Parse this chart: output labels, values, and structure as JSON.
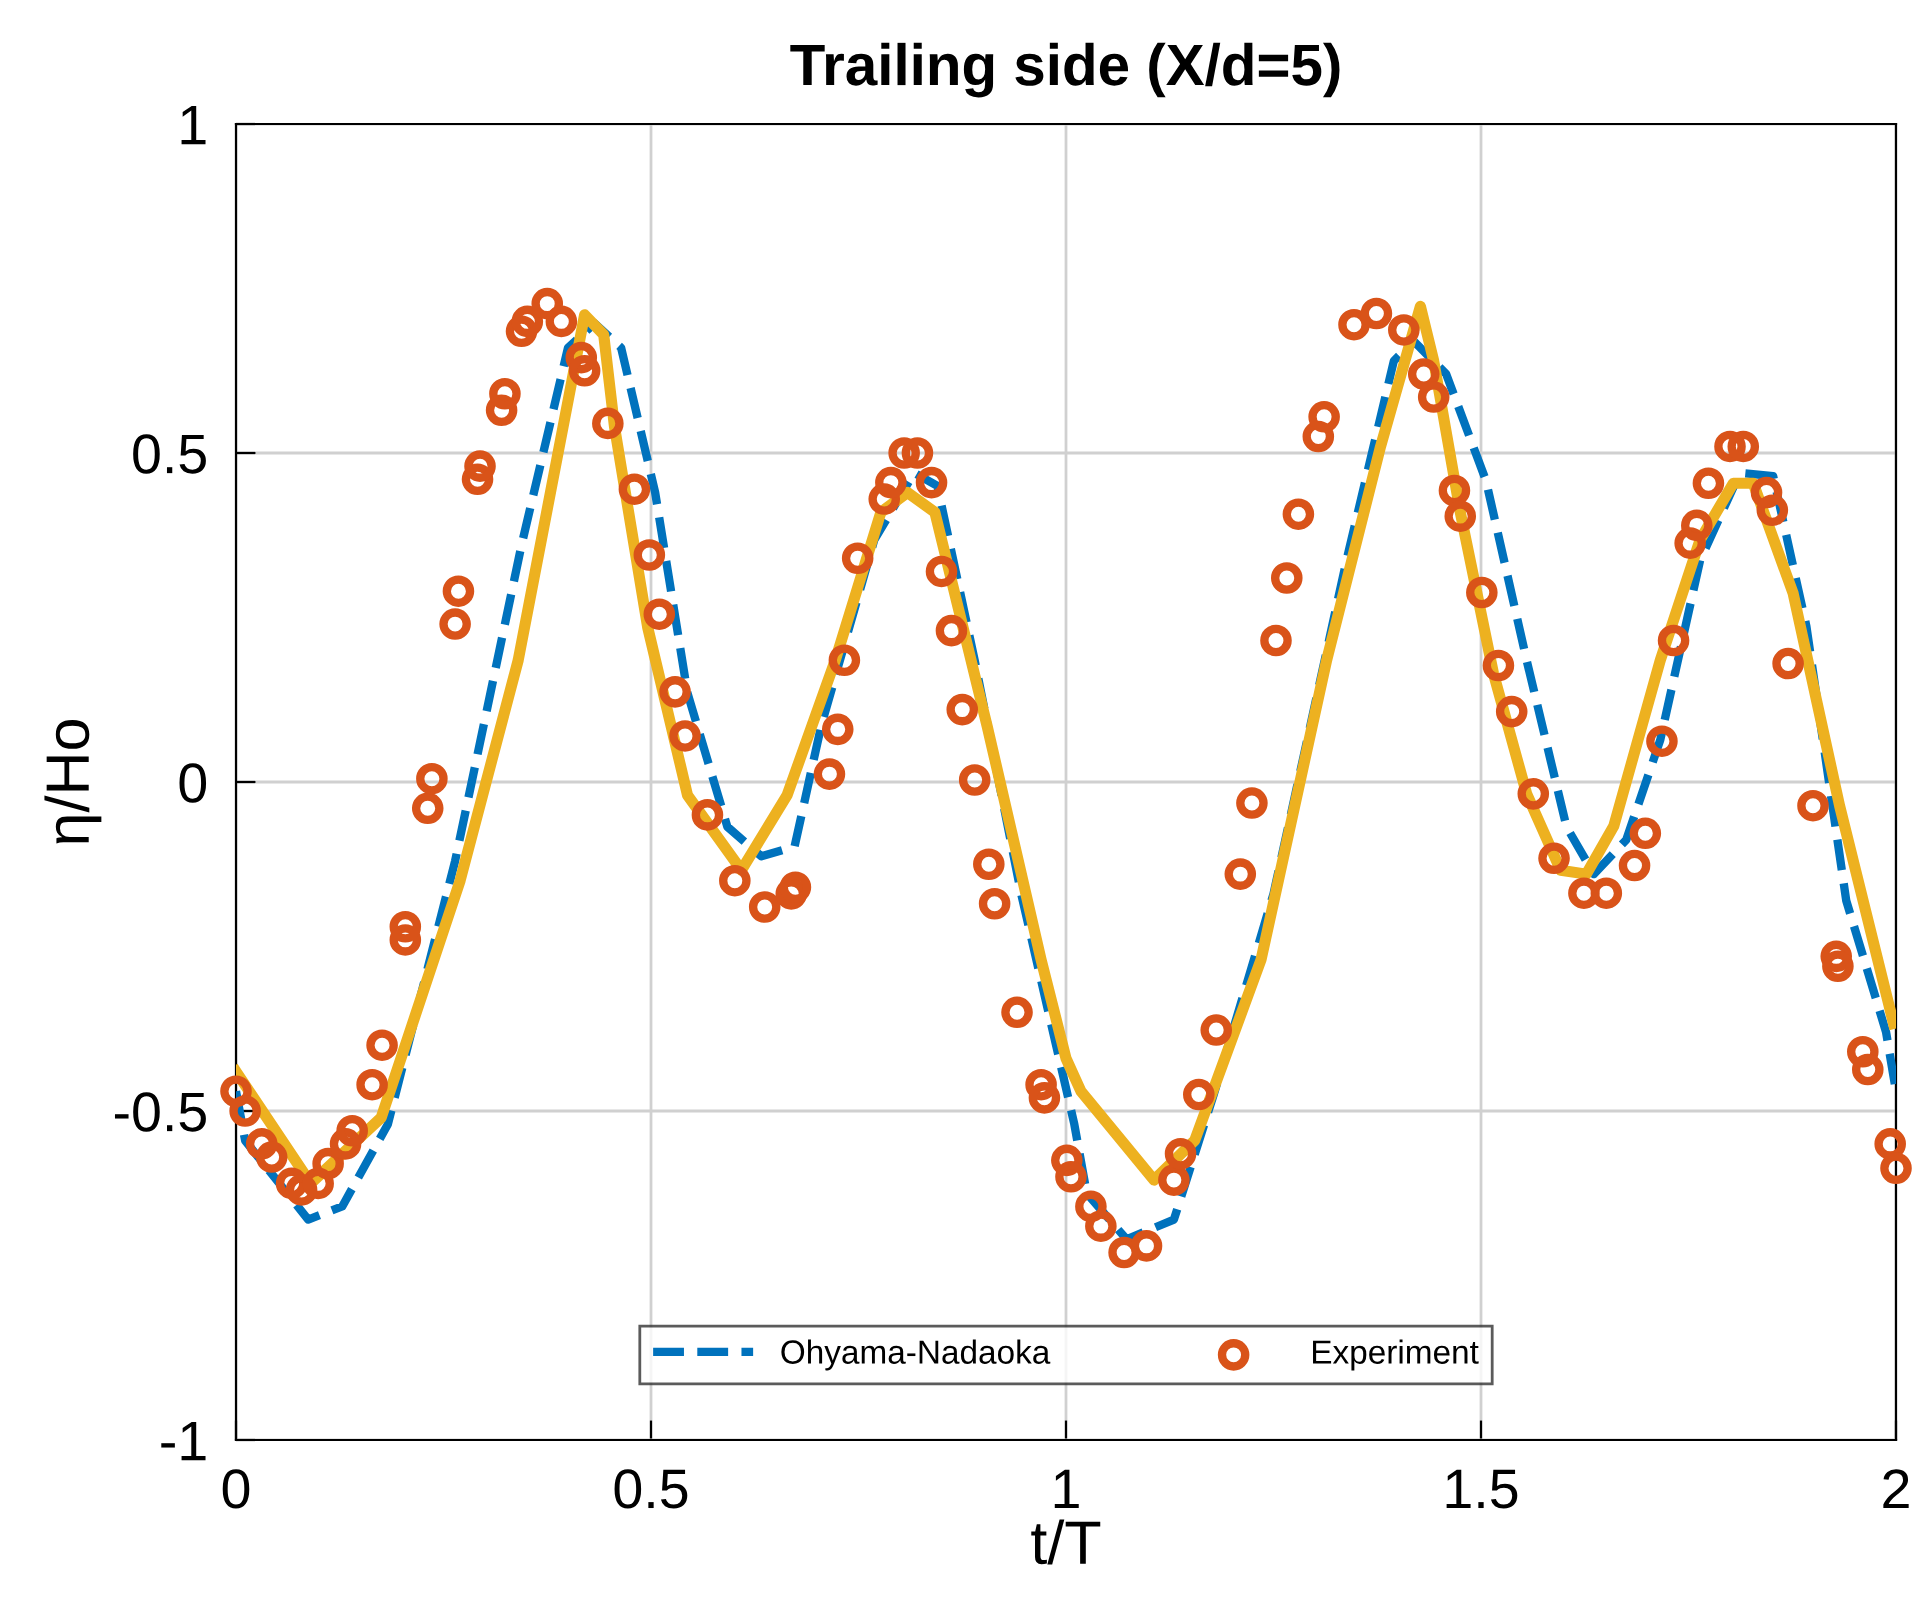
{
  "chart_data": {
    "type": "line",
    "title": "Trailing side (X/d=5)",
    "xlabel": "t/T",
    "ylabel": "η/Ho",
    "xlim": [
      0,
      2
    ],
    "ylim": [
      -1,
      1
    ],
    "xticks": [
      0,
      0.5,
      1,
      1.5,
      2
    ],
    "yticks": [
      -1,
      -0.5,
      0,
      0.5,
      1
    ],
    "grid": true,
    "legend": "bottom",
    "series": [
      {
        "name": "Ohyama-Nadaoka",
        "type": "line",
        "line_style": "dashed",
        "color": "#0072bd",
        "x": [
          0,
          0.011,
          0.087,
          0.128,
          0.183,
          0.264,
          0.344,
          0.4,
          0.432,
          0.464,
          0.505,
          0.544,
          0.592,
          0.633,
          0.673,
          0.705,
          0.769,
          0.817,
          0.845,
          0.89,
          0.946,
          1.01,
          1.025,
          1.073,
          1.13,
          1.178,
          1.25,
          1.338,
          1.395,
          1.419,
          1.458,
          1.506,
          1.555,
          1.603,
          1.636,
          1.675,
          1.716,
          1.764,
          1.812,
          1.852,
          1.892,
          1.94,
          1.988,
          2.0
        ],
        "values": [
          -0.47,
          -0.545,
          -0.665,
          -0.645,
          -0.52,
          -0.12,
          0.36,
          0.66,
          0.697,
          0.66,
          0.44,
          0.135,
          -0.068,
          -0.113,
          -0.098,
          0.085,
          0.368,
          0.47,
          0.45,
          0.185,
          -0.17,
          -0.52,
          -0.625,
          -0.695,
          -0.665,
          -0.475,
          -0.17,
          0.337,
          0.64,
          0.67,
          0.62,
          0.458,
          0.185,
          -0.068,
          -0.14,
          -0.088,
          0.064,
          0.337,
          0.47,
          0.465,
          0.237,
          -0.18,
          -0.38,
          -0.47
        ]
      },
      {
        "name": "Experiment",
        "type": "scatter",
        "marker": "circle",
        "color": "#d95319",
        "x": [
          0.0,
          0.011,
          0.031,
          0.043,
          0.067,
          0.079,
          0.099,
          0.111,
          0.132,
          0.14,
          0.164,
          0.176,
          0.204,
          0.204,
          0.231,
          0.236,
          0.264,
          0.268,
          0.291,
          0.294,
          0.32,
          0.324,
          0.344,
          0.351,
          0.375,
          0.392,
          0.416,
          0.42,
          0.448,
          0.48,
          0.498,
          0.51,
          0.529,
          0.541,
          0.568,
          0.601,
          0.637,
          0.669,
          0.674,
          0.715,
          0.725,
          0.733,
          0.749,
          0.781,
          0.789,
          0.805,
          0.821,
          0.838,
          0.85,
          0.862,
          0.875,
          0.89,
          0.907,
          0.914,
          0.941,
          0.97,
          0.974,
          1.001,
          1.006,
          1.03,
          1.042,
          1.07,
          1.097,
          1.13,
          1.138,
          1.16,
          1.181,
          1.21,
          1.224,
          1.253,
          1.266,
          1.28,
          1.304,
          1.311,
          1.347,
          1.374,
          1.407,
          1.431,
          1.443,
          1.468,
          1.475,
          1.501,
          1.521,
          1.537,
          1.563,
          1.588,
          1.624,
          1.651,
          1.685,
          1.698,
          1.718,
          1.732,
          1.752,
          1.76,
          1.774,
          1.8,
          1.816,
          1.844,
          1.851,
          1.87,
          1.9,
          1.928,
          1.93,
          1.96,
          1.966,
          1.993,
          2.0
        ],
        "values": [
          -0.47,
          -0.5,
          -0.55,
          -0.57,
          -0.61,
          -0.62,
          -0.61,
          -0.58,
          -0.55,
          -0.53,
          -0.46,
          -0.4,
          -0.24,
          -0.22,
          -0.04,
          0.005,
          0.24,
          0.29,
          0.46,
          0.48,
          0.565,
          0.59,
          0.685,
          0.7,
          0.727,
          0.7,
          0.645,
          0.625,
          0.545,
          0.445,
          0.345,
          0.255,
          0.137,
          0.07,
          -0.05,
          -0.15,
          -0.19,
          -0.17,
          -0.16,
          0.012,
          0.08,
          0.185,
          0.34,
          0.43,
          0.455,
          0.5,
          0.5,
          0.455,
          0.32,
          0.23,
          0.11,
          0.003,
          -0.125,
          -0.185,
          -0.35,
          -0.46,
          -0.48,
          -0.575,
          -0.6,
          -0.645,
          -0.675,
          -0.715,
          -0.705,
          -0.605,
          -0.565,
          -0.475,
          -0.377,
          -0.14,
          -0.032,
          0.215,
          0.31,
          0.407,
          0.525,
          0.555,
          0.695,
          0.712,
          0.687,
          0.62,
          0.585,
          0.443,
          0.404,
          0.288,
          0.177,
          0.107,
          -0.018,
          -0.116,
          -0.169,
          -0.169,
          -0.127,
          -0.078,
          0.062,
          0.215,
          0.363,
          0.39,
          0.454,
          0.51,
          0.51,
          0.44,
          0.413,
          0.18,
          -0.036,
          -0.265,
          -0.28,
          -0.41,
          -0.437,
          -0.55,
          -0.587
        ]
      },
      {
        "type": "line",
        "line_style": "solid",
        "color": "#edb120",
        "x": [
          0,
          0.09,
          0.175,
          0.27,
          0.34,
          0.42,
          0.443,
          0.456,
          0.496,
          0.544,
          0.609,
          0.664,
          0.722,
          0.777,
          0.809,
          0.842,
          0.905,
          0.97,
          1.0,
          1.018,
          1.106,
          1.155,
          1.235,
          1.314,
          1.379,
          1.427,
          1.443,
          1.475,
          1.515,
          1.555,
          1.596,
          1.627,
          1.66,
          1.716,
          1.764,
          1.804,
          1.828,
          1.876,
          1.932,
          1.997
        ],
        "values": [
          -0.44,
          -0.61,
          -0.51,
          -0.15,
          0.185,
          0.71,
          0.68,
          0.54,
          0.235,
          -0.02,
          -0.134,
          -0.02,
          0.185,
          0.41,
          0.44,
          0.41,
          0.085,
          -0.27,
          -0.42,
          -0.47,
          -0.605,
          -0.545,
          -0.27,
          0.185,
          0.51,
          0.723,
          0.64,
          0.41,
          0.165,
          -0.018,
          -0.134,
          -0.14,
          -0.067,
          0.185,
          0.368,
          0.454,
          0.454,
          0.287,
          -0.036,
          -0.367
        ]
      }
    ]
  }
}
